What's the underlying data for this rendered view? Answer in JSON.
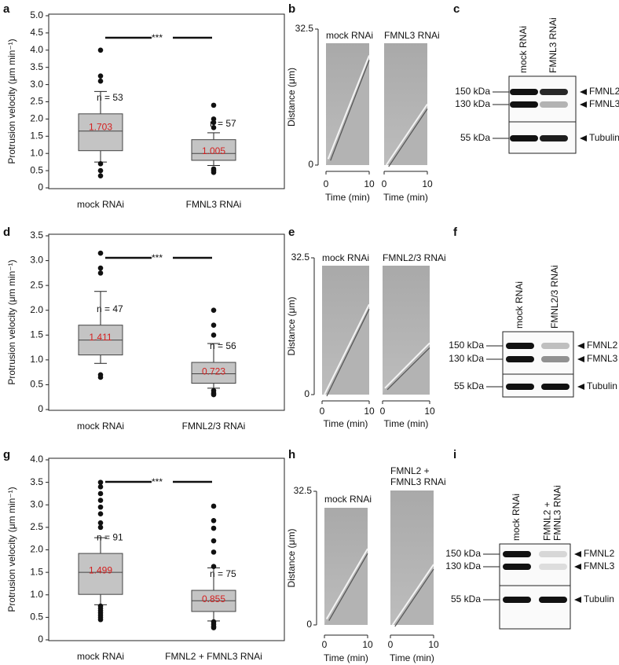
{
  "chart_data": [
    {
      "type": "box",
      "panel": "a",
      "y_label": "Protrusion velocity (μm min⁻¹)",
      "ylim": [
        0,
        5
      ],
      "yticks": [
        0,
        0.5,
        {
          "value": 1,
          "label": "1.0"
        },
        1.5,
        {
          "value": 2,
          "label": "2.0"
        },
        2.5,
        {
          "value": 3,
          "label": "3.0"
        },
        3.5,
        {
          "value": 4,
          "label": "4.0"
        },
        4.5,
        {
          "value": 5,
          "label": "5.0"
        }
      ],
      "categories": [
        "mock RNAi",
        "FMNL3 RNAi"
      ],
      "significance": "***",
      "boxes": [
        {
          "whisker_low": 0.75,
          "q1": 1.08,
          "median": 1.65,
          "q3": 2.15,
          "whisker_high": 2.8,
          "mean": 1.703,
          "outliers": [
            4.0,
            3.25,
            3.1,
            0.7,
            0.5,
            0.35
          ],
          "n_label": "n = 53"
        },
        {
          "whisker_low": 0.65,
          "q1": 0.8,
          "median": 1.0,
          "q3": 1.4,
          "whisker_high": 1.6,
          "mean": 1.005,
          "outliers": [
            2.4,
            2.0,
            1.9,
            1.75,
            0.55,
            0.5,
            0.45
          ],
          "n_label": "n = 57"
        }
      ]
    },
    {
      "type": "box",
      "panel": "d",
      "y_label": "Protrusion velocity (μm min⁻¹)",
      "ylim": [
        0,
        3.5
      ],
      "yticks": [
        0,
        0.5,
        {
          "value": 1,
          "label": "1.0"
        },
        1.5,
        {
          "value": 2,
          "label": "2.0"
        },
        2.5,
        {
          "value": 3,
          "label": "3.0"
        },
        3.5
      ],
      "categories": [
        "mock RNAi",
        "FMNL2/3 RNAi"
      ],
      "significance": "***",
      "boxes": [
        {
          "whisker_low": 0.93,
          "q1": 1.1,
          "median": 1.4,
          "q3": 1.7,
          "whisker_high": 2.38,
          "mean": 1.411,
          "outliers": [
            3.15,
            2.85,
            2.75,
            0.7,
            0.65
          ],
          "n_label": "n = 47"
        },
        {
          "whisker_low": 0.43,
          "q1": 0.53,
          "median": 0.72,
          "q3": 0.95,
          "whisker_high": 1.33,
          "mean": 0.723,
          "outliers": [
            2.0,
            1.7,
            1.5,
            0.38,
            0.33,
            0.3
          ],
          "n_label": "n = 56"
        }
      ]
    },
    {
      "type": "box",
      "panel": "g",
      "y_label": "Protrusion velocity (μm min⁻¹)",
      "ylim": [
        0,
        4
      ],
      "yticks": [
        0,
        0.5,
        {
          "value": 1,
          "label": "1.0"
        },
        1.5,
        {
          "value": 2,
          "label": "2.0"
        },
        2.5,
        {
          "value": 3,
          "label": "3.0"
        },
        3.5,
        {
          "value": 4,
          "label": "4.0"
        }
      ],
      "categories": [
        "mock RNAi",
        "FMNL2 + FMNL3 RNAi"
      ],
      "significance": "***",
      "boxes": [
        {
          "whisker_low": 0.78,
          "q1": 1.01,
          "median": 1.5,
          "q3": 1.92,
          "whisker_high": 2.27,
          "mean": 1.499,
          "outliers": [
            3.5,
            3.4,
            3.25,
            3.1,
            2.95,
            2.8,
            2.6,
            2.5,
            0.75,
            0.7,
            0.65,
            0.6,
            0.55,
            0.5,
            0.45
          ],
          "n_label": "n = 91"
        },
        {
          "whisker_low": 0.42,
          "q1": 0.63,
          "median": 0.87,
          "q3": 1.1,
          "whisker_high": 1.6,
          "mean": 0.855,
          "outliers": [
            2.97,
            2.65,
            2.48,
            2.2,
            1.95,
            1.63,
            0.4,
            0.35,
            0.3,
            0.27
          ],
          "n_label": "n = 75"
        }
      ]
    }
  ],
  "kymographs": [
    {
      "panel": "b",
      "titles": [
        [
          "mock RNAi"
        ],
        [
          "FMNL3 RNAi"
        ]
      ],
      "y_label": "Distance (μm)",
      "y_ticks": [
        32.5,
        0
      ],
      "x_ticks": [
        0,
        10
      ],
      "x_label": "Time (min)"
    },
    {
      "panel": "e",
      "titles": [
        [
          "mock RNAi"
        ],
        [
          "FMNL2/3 RNAi"
        ]
      ],
      "y_label": "Distance (μm)",
      "y_ticks": [
        32.5,
        0
      ],
      "x_ticks": [
        0,
        10
      ],
      "x_label": "Time (min)"
    },
    {
      "panel": "h",
      "titles": [
        [
          "mock RNAi"
        ],
        [
          "FMNL2 +",
          "FMNL3 RNAi"
        ]
      ],
      "y_label": "Distance (μm)",
      "y_ticks": [
        32.5,
        0
      ],
      "x_ticks": [
        0,
        10
      ],
      "x_label": "Time (min)"
    }
  ],
  "blots": [
    {
      "panel": "c",
      "lanes": [
        [
          "mock RNAi"
        ],
        [
          "FMNL3 RNAi"
        ]
      ],
      "markers": [
        "150 kDa",
        "130 kDa",
        "55 kDa"
      ],
      "bands": [
        "FMNL2",
        "FMNL3",
        "Tubulin"
      ]
    },
    {
      "panel": "f",
      "lanes": [
        [
          "mock RNAi"
        ],
        [
          "FMNL2/3 RNAi"
        ]
      ],
      "markers": [
        "150 kDa",
        "130 kDa",
        "55 kDa"
      ],
      "bands": [
        "FMNL2",
        "FMNL3",
        "Tubulin"
      ]
    },
    {
      "panel": "i",
      "lanes": [
        [
          "mock RNAi"
        ],
        [
          "FMNL2 +",
          "FMNL3 RNAi"
        ]
      ],
      "markers": [
        "150 kDa",
        "130 kDa",
        "55 kDa"
      ],
      "bands": [
        "FMNL2",
        "FMNL3",
        "Tubulin"
      ]
    }
  ]
}
